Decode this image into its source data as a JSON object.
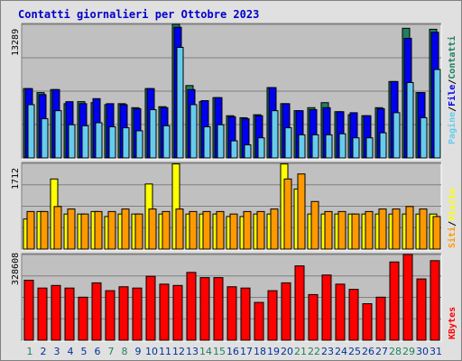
{
  "title": "Contatti giornalieri per Ottobre 2023",
  "colors": {
    "pagine": "#66ccee",
    "file": "#0000ee",
    "contatti": "#208060",
    "siti": "#ff9900",
    "visite": "#ffff00",
    "kbytes": "#ff0000",
    "weekday": "#003399",
    "weekend": "#208060",
    "panel": "#c0c0c0"
  },
  "chart_data": [
    {
      "type": "bar",
      "panel": "top",
      "ymax_label": "13289",
      "ylim": [
        0,
        13289
      ],
      "right_label_parts": [
        "Pagine",
        "File",
        "Contatti"
      ],
      "categories": [
        "1",
        "2",
        "3",
        "4",
        "5",
        "6",
        "7",
        "8",
        "9",
        "10",
        "11",
        "12",
        "13",
        "14",
        "15",
        "16",
        "17",
        "18",
        "19",
        "20",
        "21",
        "22",
        "23",
        "24",
        "25",
        "26",
        "27",
        "28",
        "29",
        "30",
        "31"
      ],
      "weekend_days": [
        "1",
        "7",
        "8",
        "14",
        "15",
        "21",
        "22",
        "28",
        "29"
      ],
      "series": [
        {
          "name": "Contatti",
          "values": [
            6900,
            6500,
            6800,
            5400,
            5600,
            5500,
            5300,
            5400,
            5000,
            6900,
            5100,
            13300,
            7200,
            5600,
            6000,
            4200,
            4000,
            4300,
            7000,
            5400,
            4700,
            5000,
            5500,
            4600,
            4300,
            4200,
            5000,
            7600,
            12900,
            6500,
            12800
          ]
        },
        {
          "name": "File",
          "values": [
            6900,
            6300,
            6800,
            5600,
            5400,
            5900,
            5400,
            5300,
            4900,
            6900,
            5000,
            13000,
            6800,
            5700,
            6000,
            4100,
            3900,
            4200,
            7000,
            5400,
            4700,
            4800,
            5000,
            4600,
            4500,
            4200,
            4900,
            7600,
            11900,
            6500,
            12500
          ]
        },
        {
          "name": "Pagine",
          "values": [
            5300,
            3900,
            4700,
            3300,
            3200,
            3500,
            3100,
            3000,
            2700,
            4800,
            3200,
            11000,
            5300,
            3100,
            3300,
            1700,
            1300,
            2000,
            4700,
            3000,
            2300,
            2300,
            2300,
            2400,
            2000,
            2000,
            2500,
            4500,
            7500,
            4000,
            8800
          ]
        }
      ]
    },
    {
      "type": "bar",
      "panel": "middle",
      "ymax_label": "1712",
      "ylim": [
        0,
        1712
      ],
      "right_label_parts": [
        "Siti",
        "Visite"
      ],
      "categories": [
        "1",
        "2",
        "3",
        "4",
        "5",
        "6",
        "7",
        "8",
        "9",
        "10",
        "11",
        "12",
        "13",
        "14",
        "15",
        "16",
        "17",
        "18",
        "19",
        "20",
        "21",
        "22",
        "23",
        "24",
        "25",
        "26",
        "27",
        "28",
        "29",
        "30",
        "31"
      ],
      "series": [
        {
          "name": "Visite",
          "values": [
            600,
            750,
            1400,
            700,
            700,
            750,
            650,
            700,
            700,
            1300,
            700,
            1700,
            700,
            700,
            700,
            650,
            650,
            700,
            700,
            1700,
            1200,
            700,
            700,
            700,
            700,
            700,
            700,
            700,
            700,
            700,
            700
          ]
        },
        {
          "name": "Siti",
          "values": [
            750,
            750,
            850,
            800,
            700,
            750,
            750,
            800,
            700,
            800,
            750,
            800,
            750,
            750,
            750,
            700,
            750,
            750,
            800,
            1400,
            1500,
            950,
            750,
            750,
            700,
            750,
            800,
            800,
            850,
            800,
            650
          ]
        }
      ]
    },
    {
      "type": "bar",
      "panel": "bottom",
      "ymax_label": "328608",
      "ylim": [
        0,
        328608
      ],
      "right_label_parts": [
        "KBytes"
      ],
      "categories": [
        "1",
        "2",
        "3",
        "4",
        "5",
        "6",
        "7",
        "8",
        "9",
        "10",
        "11",
        "12",
        "13",
        "14",
        "15",
        "16",
        "17",
        "18",
        "19",
        "20",
        "21",
        "22",
        "23",
        "24",
        "25",
        "26",
        "27",
        "28",
        "29",
        "30",
        "31"
      ],
      "series": [
        {
          "name": "KBytes",
          "values": [
            230000,
            200000,
            210000,
            200000,
            165000,
            220000,
            190000,
            205000,
            200000,
            245000,
            215000,
            210000,
            260000,
            240000,
            240000,
            205000,
            200000,
            145000,
            190000,
            220000,
            285000,
            175000,
            250000,
            215000,
            195000,
            140000,
            165000,
            300000,
            330000,
            235000,
            305000
          ]
        }
      ]
    }
  ]
}
